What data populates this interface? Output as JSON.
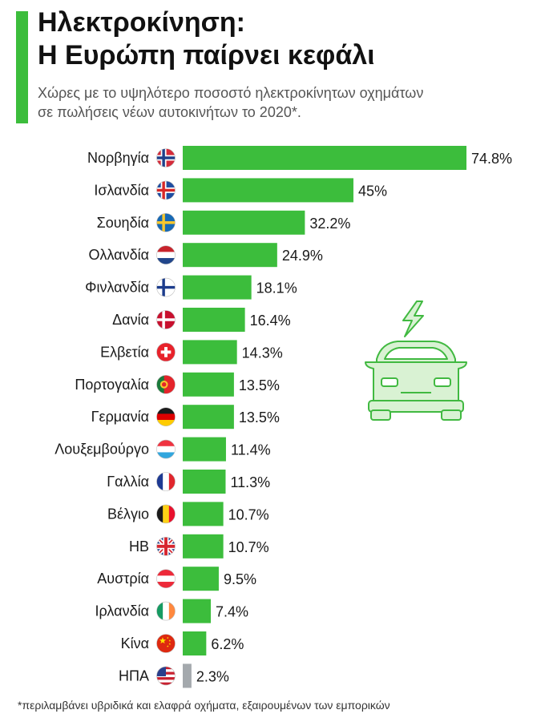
{
  "header": {
    "title_line1": "Ηλεκτροκίνηση:",
    "title_line2": "Η Ευρώπη παίρνει κεφάλι",
    "subtitle_line1": "Χώρες με το υψηλότερο ποσοστό ηλεκτροκίνητων οχημάτων",
    "subtitle_line2": "σε πωλήσεις νέων αυτοκινήτων το 2020*."
  },
  "footnote": "*περιλαμβάνει υβριδικά και ελαφρά οχήματα, εξαιρουμένων των εμπορικών",
  "colors": {
    "accent": "#3cbd3c",
    "bar": "#3cbd3c",
    "bar_highlight": "#a4a9ad",
    "icon_fill": "#d9f2d3",
    "icon_stroke": "#41b941"
  },
  "illustration": {
    "icon": "electric-car-icon"
  },
  "chart_data": {
    "type": "bar",
    "orientation": "horizontal",
    "title": "Ηλεκτροκίνηση: Η Ευρώπη παίρνει κεφάλι",
    "xlabel": "",
    "ylabel": "",
    "xlim": [
      0,
      80
    ],
    "grid": false,
    "categories": [
      "Νορβηγία",
      "Ισλανδία",
      "Σουηδία",
      "Ολλανδία",
      "Φινλανδία",
      "Δανία",
      "Ελβετία",
      "Πορτογαλία",
      "Γερμανία",
      "Λουξεμβούργο",
      "Γαλλία",
      "Βέλγιο",
      "ΗΒ",
      "Αυστρία",
      "Ιρλανδία",
      "Κίνα",
      "ΗΠΑ"
    ],
    "values": [
      74.8,
      45,
      32.2,
      24.9,
      18.1,
      16.4,
      14.3,
      13.5,
      13.5,
      11.4,
      11.3,
      10.7,
      10.7,
      9.5,
      7.4,
      6.2,
      2.3
    ],
    "labels": [
      "74.8%",
      "45%",
      "32.2%",
      "24.9%",
      "18.1%",
      "16.4%",
      "14.3%",
      "13.5%",
      "13.5%",
      "11.4%",
      "11.3%",
      "10.7%",
      "10.7%",
      "9.5%",
      "7.4%",
      "6.2%",
      "2.3%"
    ],
    "flags": [
      "norway",
      "iceland",
      "sweden",
      "netherlands",
      "finland",
      "denmark",
      "switzerland",
      "portugal",
      "germany",
      "luxembourg",
      "france",
      "belgium",
      "uk",
      "austria",
      "ireland",
      "china",
      "usa"
    ],
    "highlighted_category": "ΗΠΑ"
  }
}
